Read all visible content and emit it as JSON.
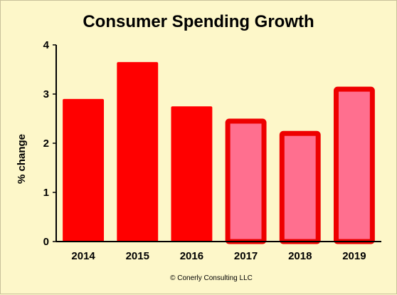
{
  "chart_data": {
    "type": "bar",
    "title": "Consumer Spending Growth",
    "ylabel": "% change",
    "xlabel": "",
    "categories": [
      "2014",
      "2015",
      "2016",
      "2017",
      "2018",
      "2019"
    ],
    "values": [
      2.9,
      3.65,
      2.75,
      2.5,
      2.25,
      3.15
    ],
    "ylim": [
      0,
      4
    ],
    "yticks": [
      "0",
      "1",
      "2",
      "3",
      "4"
    ],
    "grid": false,
    "legend": "none",
    "colors": {
      "actual_fill": "#ff0000",
      "forecast_fill": "#ff6f8f",
      "forecast_border": "#ee0000",
      "background": "#fdf7c9",
      "axis": "#000000"
    },
    "forecast_from_index": 3
  },
  "footer": {
    "credit": "© Conerly Consulting LLC"
  }
}
